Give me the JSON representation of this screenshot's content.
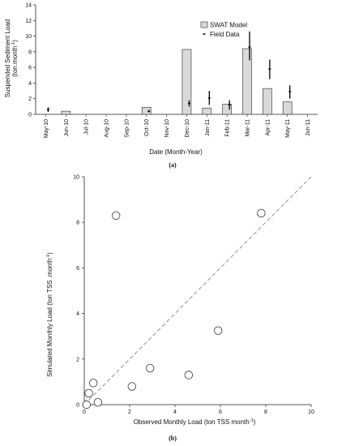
{
  "chart_data": [
    {
      "type": "bar",
      "caption": "(a)",
      "xlabel": "Date (Month-Year)",
      "ylabel_main": "Suspended Sediment Load",
      "ylabel_unit": "(ton.month",
      "ylabel_sup": "-1",
      "ylabel_close": ")",
      "ylim": [
        0,
        14
      ],
      "yticks": [
        0,
        2,
        4,
        6,
        8,
        10,
        12,
        14
      ],
      "grid": false,
      "legend_position": "top-right",
      "categories": [
        "May-10",
        "Jun-10",
        "Jul-10",
        "Aug-10",
        "Sep-10",
        "Oct-10",
        "Nov-10",
        "Dec-10",
        "Jan-11",
        "Feb-11",
        "Mar-11",
        "Apr-11",
        "May-11",
        "Jun-11"
      ],
      "series": [
        {
          "name": "SWAT Model",
          "values": [
            0,
            0.4,
            0,
            0,
            0,
            0.9,
            0,
            8.3,
            0.8,
            1.3,
            8.4,
            3.3,
            1.6,
            0
          ]
        },
        {
          "name": "Field Data",
          "values": [
            0.6,
            0,
            0,
            0,
            0,
            0.4,
            0,
            1.4,
            2.1,
            1.2,
            8.6,
            5.8,
            2.9,
            0
          ],
          "error_low": [
            0.3,
            0,
            0,
            0,
            0,
            0.25,
            0,
            1.0,
            1.2,
            0.6,
            6.9,
            4.5,
            2.0,
            0
          ],
          "error_high": [
            0.9,
            0,
            0,
            0,
            0,
            0.55,
            0,
            1.8,
            3.0,
            1.8,
            10.6,
            7.0,
            3.7,
            0
          ]
        }
      ],
      "colors": {
        "bar_fill": "#d9d9d9",
        "bar_stroke": "#444444",
        "field": "#000000"
      }
    },
    {
      "type": "scatter",
      "caption": "(b)",
      "xlabel_main": "Observed Monthly Load (ton TSS  month",
      "xlabel_sup": "-1",
      "xlabel_close": ")",
      "ylabel_main": "Simulated Monthly Load (ton TSS .month",
      "ylabel_sup": "-1",
      "ylabel_close": ")",
      "xlim": [
        0,
        10
      ],
      "ylim": [
        0,
        10
      ],
      "xticks": [
        0,
        2,
        4,
        6,
        8,
        10
      ],
      "yticks": [
        0,
        2,
        4,
        6,
        8,
        10
      ],
      "grid": false,
      "reference_line": "1:1 dashed",
      "points": [
        {
          "x": 0.1,
          "y": 0.0
        },
        {
          "x": 0.2,
          "y": 0.5
        },
        {
          "x": 0.4,
          "y": 0.95
        },
        {
          "x": 0.6,
          "y": 0.1
        },
        {
          "x": 1.4,
          "y": 8.3
        },
        {
          "x": 2.1,
          "y": 0.8
        },
        {
          "x": 2.9,
          "y": 1.6
        },
        {
          "x": 4.6,
          "y": 1.3
        },
        {
          "x": 5.9,
          "y": 3.25
        },
        {
          "x": 7.8,
          "y": 8.4
        }
      ],
      "colors": {
        "marker_stroke": "#333333",
        "reference": "#888888"
      }
    }
  ]
}
